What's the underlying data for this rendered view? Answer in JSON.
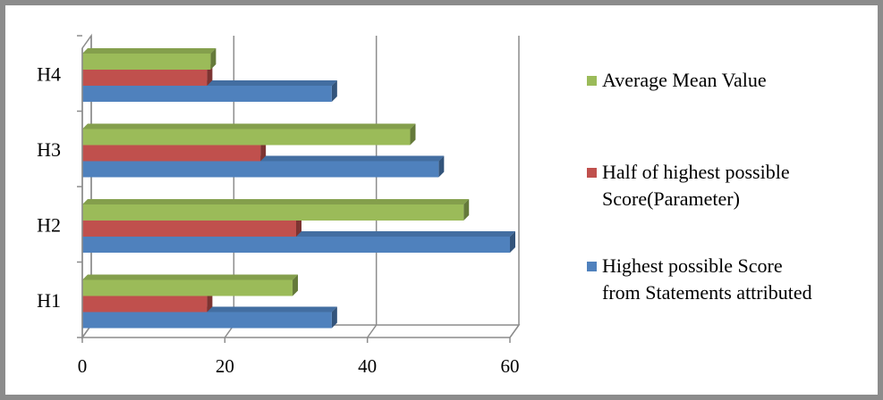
{
  "chart_data": {
    "type": "bar",
    "orientation": "horizontal",
    "style": "3d",
    "categories": [
      "H1",
      "H2",
      "H3",
      "H4"
    ],
    "series": [
      {
        "name": "Highest possible Score from Statements attributed",
        "values": [
          35,
          60,
          50,
          35
        ],
        "color": "#4f81bd"
      },
      {
        "name": "Half of highest possible Score(Parameter)",
        "values": [
          17.5,
          30,
          25,
          17.5
        ],
        "color": "#c0504d"
      },
      {
        "name": "Average Mean Value",
        "values": [
          29.5,
          53.5,
          46,
          18
        ],
        "color": "#9bbb59"
      }
    ],
    "xlim": [
      0,
      60
    ],
    "xticks": [
      "0",
      "20",
      "40",
      "60"
    ],
    "grid": true,
    "legend_position": "right",
    "legend_lines": [
      [
        "Average Mean Value"
      ],
      [
        "Half of highest possible",
        "Score(Parameter)"
      ],
      [
        "Highest possible Score",
        "from Statements attributed"
      ]
    ]
  }
}
